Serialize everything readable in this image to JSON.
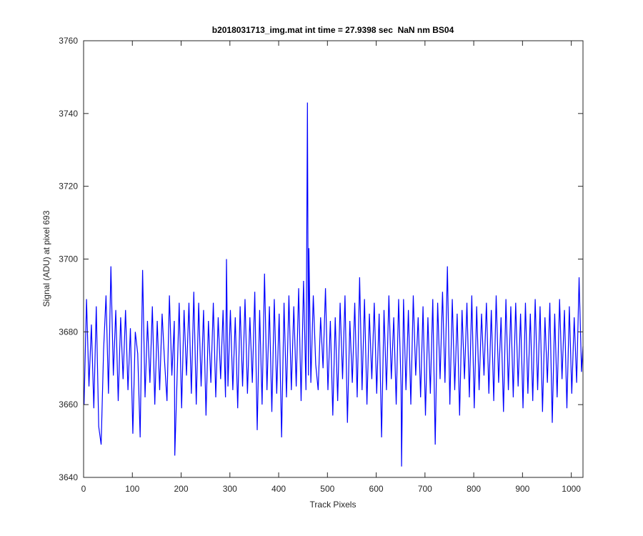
{
  "chart_data": {
    "type": "line",
    "title": "b2018031713_img.mat int time = 27.9398 sec  NaN nm BS04",
    "x_label": "Track Pixels",
    "y_label": "Signal (ADU) at pixel 693",
    "xlim": [
      0,
      1024
    ],
    "ylim": [
      3640,
      3760
    ],
    "xticks": [
      0,
      100,
      200,
      300,
      400,
      500,
      600,
      700,
      800,
      900,
      1000
    ],
    "yticks": [
      3640,
      3660,
      3680,
      3700,
      3720,
      3740,
      3760
    ],
    "x": [
      1,
      6,
      11,
      16,
      21,
      26,
      31,
      36,
      41,
      46,
      51,
      56,
      61,
      66,
      71,
      76,
      81,
      86,
      91,
      96,
      101,
      106,
      111,
      116,
      121,
      126,
      131,
      136,
      141,
      146,
      151,
      156,
      161,
      166,
      171,
      176,
      181,
      186,
      187,
      191,
      196,
      201,
      206,
      211,
      216,
      221,
      226,
      231,
      236,
      241,
      246,
      251,
      256,
      261,
      266,
      271,
      276,
      281,
      286,
      291,
      293,
      296,
      301,
      306,
      311,
      316,
      321,
      326,
      331,
      336,
      341,
      346,
      351,
      356,
      361,
      366,
      371,
      376,
      381,
      386,
      391,
      396,
      401,
      406,
      411,
      416,
      421,
      426,
      431,
      436,
      441,
      446,
      451,
      456,
      459,
      461,
      462,
      466,
      471,
      476,
      481,
      486,
      491,
      496,
      501,
      506,
      511,
      516,
      521,
      526,
      531,
      536,
      541,
      546,
      551,
      556,
      561,
      566,
      571,
      576,
      581,
      586,
      591,
      596,
      601,
      606,
      611,
      616,
      621,
      626,
      631,
      636,
      641,
      646,
      651,
      652,
      656,
      661,
      666,
      671,
      676,
      681,
      686,
      691,
      696,
      701,
      706,
      711,
      716,
      721,
      726,
      731,
      736,
      741,
      746,
      751,
      756,
      761,
      766,
      771,
      776,
      781,
      786,
      791,
      796,
      801,
      806,
      811,
      816,
      821,
      826,
      831,
      836,
      841,
      846,
      851,
      856,
      861,
      866,
      871,
      876,
      881,
      886,
      891,
      896,
      901,
      906,
      911,
      916,
      921,
      926,
      931,
      936,
      941,
      946,
      951,
      956,
      961,
      966,
      971,
      976,
      981,
      986,
      991,
      996,
      1001,
      1006,
      1011,
      1016,
      1021,
      1024
    ],
    "series": [
      {
        "color": "#0000ff",
        "values": [
          3660,
          3689,
          3665,
          3682,
          3659,
          3687,
          3654,
          3649,
          3675,
          3690,
          3663,
          3698,
          3668,
          3686,
          3661,
          3684,
          3667,
          3686,
          3664,
          3681,
          3652,
          3680,
          3674,
          3651,
          3697,
          3662,
          3683,
          3666,
          3687,
          3660,
          3683,
          3664,
          3685,
          3672,
          3661,
          3690,
          3668,
          3683,
          3646,
          3664,
          3688,
          3659,
          3686,
          3668,
          3688,
          3663,
          3691,
          3660,
          3688,
          3665,
          3686,
          3657,
          3683,
          3666,
          3688,
          3662,
          3684,
          3667,
          3686,
          3662,
          3700,
          3665,
          3686,
          3664,
          3684,
          3659,
          3687,
          3665,
          3689,
          3663,
          3684,
          3666,
          3691,
          3653,
          3686,
          3660,
          3696,
          3664,
          3687,
          3658,
          3689,
          3663,
          3685,
          3651,
          3688,
          3662,
          3690,
          3664,
          3687,
          3665,
          3692,
          3661,
          3694,
          3664,
          3743,
          3668,
          3703,
          3666,
          3690,
          3671,
          3664,
          3684,
          3670,
          3692,
          3664,
          3683,
          3657,
          3684,
          3661,
          3688,
          3667,
          3690,
          3655,
          3683,
          3666,
          3688,
          3662,
          3695,
          3664,
          3689,
          3660,
          3685,
          3667,
          3688,
          3663,
          3685,
          3651,
          3686,
          3664,
          3690,
          3667,
          3684,
          3660,
          3689,
          3665,
          3643,
          3689,
          3664,
          3686,
          3660,
          3690,
          3668,
          3684,
          3662,
          3687,
          3657,
          3684,
          3663,
          3689,
          3649,
          3688,
          3667,
          3691,
          3666,
          3698,
          3660,
          3689,
          3664,
          3685,
          3657,
          3686,
          3667,
          3688,
          3662,
          3690,
          3659,
          3687,
          3664,
          3685,
          3668,
          3688,
          3663,
          3686,
          3661,
          3690,
          3666,
          3684,
          3658,
          3689,
          3664,
          3687,
          3662,
          3688,
          3665,
          3685,
          3659,
          3688,
          3663,
          3685,
          3661,
          3689,
          3664,
          3687,
          3658,
          3684,
          3666,
          3688,
          3655,
          3685,
          3662,
          3689,
          3667,
          3686,
          3659,
          3687,
          3663,
          3684,
          3666,
          3695,
          3669,
          3676
        ]
      }
    ]
  }
}
